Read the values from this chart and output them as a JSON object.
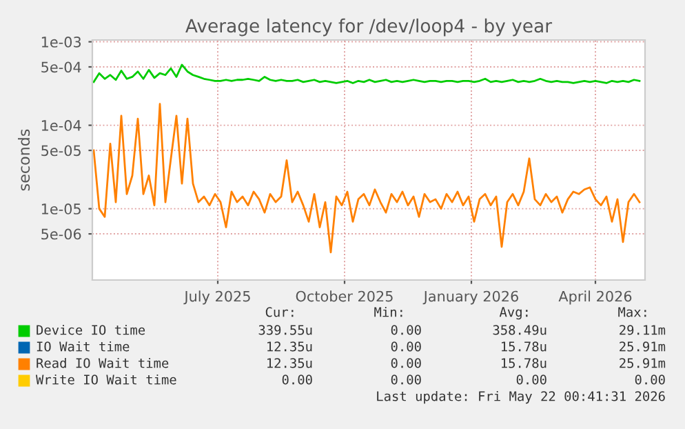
{
  "chart_data": {
    "type": "line",
    "title": "Average latency for /dev/loop4 - by year",
    "ylabel": "seconds",
    "log": true,
    "grid": true,
    "legend": "bottom",
    "line_style": "solid",
    "marker": "none",
    "x": [
      "2025-04-17",
      "2025-04-21",
      "2025-04-25",
      "2025-04-29",
      "2025-05-03",
      "2025-05-07",
      "2025-05-11",
      "2025-05-15",
      "2025-05-19",
      "2025-05-23",
      "2025-05-27",
      "2025-05-31",
      "2025-06-04",
      "2025-06-08",
      "2025-06-12",
      "2025-06-16",
      "2025-06-20",
      "2025-06-24",
      "2025-06-28",
      "2025-07-02",
      "2025-07-06",
      "2025-07-10",
      "2025-07-14",
      "2025-07-18",
      "2025-07-22",
      "2025-07-26",
      "2025-07-30",
      "2025-08-03",
      "2025-08-07",
      "2025-08-11",
      "2025-08-15",
      "2025-08-19",
      "2025-08-23",
      "2025-08-27",
      "2025-08-31",
      "2025-09-04",
      "2025-09-08",
      "2025-09-12",
      "2025-09-16",
      "2025-09-20",
      "2025-09-24",
      "2025-09-28",
      "2025-10-02",
      "2025-10-06",
      "2025-10-10",
      "2025-10-14",
      "2025-10-18",
      "2025-10-22",
      "2025-10-26",
      "2025-10-30",
      "2025-11-03",
      "2025-11-07",
      "2025-11-11",
      "2025-11-15",
      "2025-11-19",
      "2025-11-23",
      "2025-11-27",
      "2025-12-01",
      "2025-12-05",
      "2025-12-09",
      "2025-12-13",
      "2025-12-17",
      "2025-12-21",
      "2025-12-25",
      "2025-12-29",
      "2026-01-02",
      "2026-01-06",
      "2026-01-10",
      "2026-01-14",
      "2026-01-18",
      "2026-01-22",
      "2026-01-26",
      "2026-01-30",
      "2026-02-03",
      "2026-02-07",
      "2026-02-11",
      "2026-02-15",
      "2026-02-19",
      "2026-02-23",
      "2026-02-27",
      "2026-03-03",
      "2026-03-07",
      "2026-03-11",
      "2026-03-15",
      "2026-03-19",
      "2026-03-23",
      "2026-03-27",
      "2026-03-31",
      "2026-04-04",
      "2026-04-08",
      "2026-04-12",
      "2026-04-16",
      "2026-04-20",
      "2026-04-24",
      "2026-04-28",
      "2026-05-02",
      "2026-05-06",
      "2026-05-10",
      "2026-05-14",
      "2026-05-18"
    ],
    "xlim": [
      "2025-04-16",
      "2026-05-22"
    ],
    "xticks": [
      {
        "value": "2025-07-16",
        "label": "July 2025"
      },
      {
        "value": "2025-10-16",
        "label": "October 2025"
      },
      {
        "value": "2026-01-16",
        "label": "January 2026"
      },
      {
        "value": "2026-04-16",
        "label": "April 2026"
      }
    ],
    "ylim": [
      1.4e-06,
      0.00105
    ],
    "yticks": [
      {
        "value": 0.001,
        "label": "1e-03"
      },
      {
        "value": 0.0005,
        "label": "5e-04"
      },
      {
        "value": 0.0001,
        "label": "1e-04"
      },
      {
        "value": 5e-05,
        "label": "5e-05"
      },
      {
        "value": 1e-05,
        "label": "1e-05"
      },
      {
        "value": 5e-06,
        "label": "5e-06"
      }
    ],
    "series": [
      {
        "name": "Device IO time",
        "color": "#00cc00",
        "values": [
          0.00033,
          0.00042,
          0.00036,
          0.0004,
          0.00035,
          0.00045,
          0.00036,
          0.00038,
          0.00044,
          0.00036,
          0.00046,
          0.00037,
          0.00042,
          0.0004,
          0.00048,
          0.00038,
          0.00053,
          0.00044,
          0.0004,
          0.00038,
          0.00036,
          0.00035,
          0.00034,
          0.00034,
          0.00035,
          0.00034,
          0.00035,
          0.00035,
          0.00036,
          0.00035,
          0.00034,
          0.00038,
          0.00035,
          0.00034,
          0.00035,
          0.00034,
          0.00034,
          0.00035,
          0.00033,
          0.00034,
          0.00035,
          0.00033,
          0.00034,
          0.00033,
          0.00032,
          0.00033,
          0.00034,
          0.00032,
          0.00034,
          0.00033,
          0.00035,
          0.00033,
          0.00034,
          0.00035,
          0.00033,
          0.00034,
          0.00033,
          0.00034,
          0.00035,
          0.00034,
          0.00033,
          0.00034,
          0.00034,
          0.00033,
          0.00034,
          0.00034,
          0.00033,
          0.00034,
          0.00034,
          0.00033,
          0.00034,
          0.00036,
          0.00033,
          0.00034,
          0.00033,
          0.00034,
          0.00035,
          0.00033,
          0.00034,
          0.00033,
          0.00034,
          0.00036,
          0.00034,
          0.00033,
          0.00034,
          0.00033,
          0.00033,
          0.00032,
          0.00033,
          0.00034,
          0.00033,
          0.00034,
          0.00033,
          0.00032,
          0.00034,
          0.00033,
          0.00034,
          0.00033,
          0.00035,
          0.00034
        ]
      },
      {
        "name": "IO Wait time",
        "color": "#0066b3",
        "values": [
          null,
          null,
          null,
          null,
          null,
          null,
          null,
          null,
          null,
          null,
          null,
          null,
          null,
          null,
          null,
          null,
          null,
          null,
          null,
          null,
          null,
          null,
          null,
          null,
          null,
          null,
          null,
          null,
          null,
          null,
          null,
          null,
          null,
          null,
          null,
          null,
          null,
          null,
          null,
          null,
          null,
          null,
          null,
          null,
          null,
          null,
          null,
          null,
          null,
          null,
          null,
          null,
          null,
          null,
          null,
          null,
          null,
          null,
          null,
          null,
          null,
          null,
          null,
          null,
          null,
          null,
          null,
          null,
          null,
          null,
          null,
          null,
          null,
          null,
          null,
          null,
          null,
          null,
          null,
          null,
          null,
          null,
          null,
          null,
          null,
          null,
          null,
          null,
          null,
          null,
          null,
          null,
          null,
          null,
          null,
          null,
          null,
          null,
          null,
          null
        ]
      },
      {
        "name": "Read IO Wait time",
        "color": "#ff8000",
        "values": [
          5e-05,
          1e-05,
          8e-06,
          6e-05,
          1.2e-05,
          0.00013,
          1.5e-05,
          2.5e-05,
          0.00012,
          1.5e-05,
          2.5e-05,
          1.1e-05,
          0.00018,
          1.2e-05,
          4e-05,
          0.00013,
          2e-05,
          0.00012,
          2e-05,
          1.2e-05,
          1.4e-05,
          1.1e-05,
          1.5e-05,
          1.2e-05,
          6e-06,
          1.6e-05,
          1.2e-05,
          1.4e-05,
          1.1e-05,
          1.6e-05,
          1.3e-05,
          9e-06,
          1.5e-05,
          1.2e-05,
          1.4e-05,
          3.8e-05,
          1.2e-05,
          1.6e-05,
          1.1e-05,
          7e-06,
          1.5e-05,
          6e-06,
          1.2e-05,
          3e-06,
          1.4e-05,
          1.1e-05,
          1.6e-05,
          7e-06,
          1.3e-05,
          1.5e-05,
          1.1e-05,
          1.7e-05,
          1.2e-05,
          9e-06,
          1.5e-05,
          1.2e-05,
          1.6e-05,
          1.1e-05,
          1.4e-05,
          8e-06,
          1.5e-05,
          1.2e-05,
          1.3e-05,
          1e-05,
          1.5e-05,
          1.2e-05,
          1.6e-05,
          1.1e-05,
          1.4e-05,
          7e-06,
          1.3e-05,
          1.5e-05,
          1.1e-05,
          1.4e-05,
          3.5e-06,
          1.2e-05,
          1.5e-05,
          1.1e-05,
          1.6e-05,
          4e-05,
          1.3e-05,
          1.1e-05,
          1.5e-05,
          1.2e-05,
          1.4e-05,
          9e-06,
          1.3e-05,
          1.6e-05,
          1.5e-05,
          1.7e-05,
          1.8e-05,
          1.3e-05,
          1.1e-05,
          1.4e-05,
          7e-06,
          1.3e-05,
          4e-06,
          1.2e-05,
          1.5e-05,
          1.2e-05
        ]
      },
      {
        "name": "Write IO Wait time",
        "color": "#ffcc00",
        "values": [
          null,
          null,
          null,
          null,
          null,
          null,
          null,
          null,
          null,
          null,
          null,
          null,
          null,
          null,
          null,
          null,
          null,
          null,
          null,
          null,
          null,
          null,
          null,
          null,
          null,
          null,
          null,
          null,
          null,
          null,
          null,
          null,
          null,
          null,
          null,
          null,
          null,
          null,
          null,
          null,
          null,
          null,
          null,
          null,
          null,
          null,
          null,
          null,
          null,
          null,
          null,
          null,
          null,
          null,
          null,
          null,
          null,
          null,
          null,
          null,
          null,
          null,
          null,
          null,
          null,
          null,
          null,
          null,
          null,
          null,
          null,
          null,
          null,
          null,
          null,
          null,
          null,
          null,
          null,
          null,
          null,
          null,
          null,
          null,
          null,
          null,
          null,
          null,
          null,
          null,
          null,
          null,
          null,
          null,
          null,
          null,
          null,
          null,
          null,
          null
        ]
      }
    ],
    "annotations": [
      "Cur:",
      "Min:",
      "Avg:",
      "Max:",
      "339.55u",
      "0.00",
      "358.49u",
      "29.11m",
      "12.35u",
      "0.00",
      "15.78u",
      "25.91m",
      "12.35u",
      "0.00",
      "15.78u",
      "25.91m",
      "0.00",
      "0.00",
      "0.00",
      "0.00",
      "Last update: Fri May 22 00:41:31 2026"
    ]
  }
}
